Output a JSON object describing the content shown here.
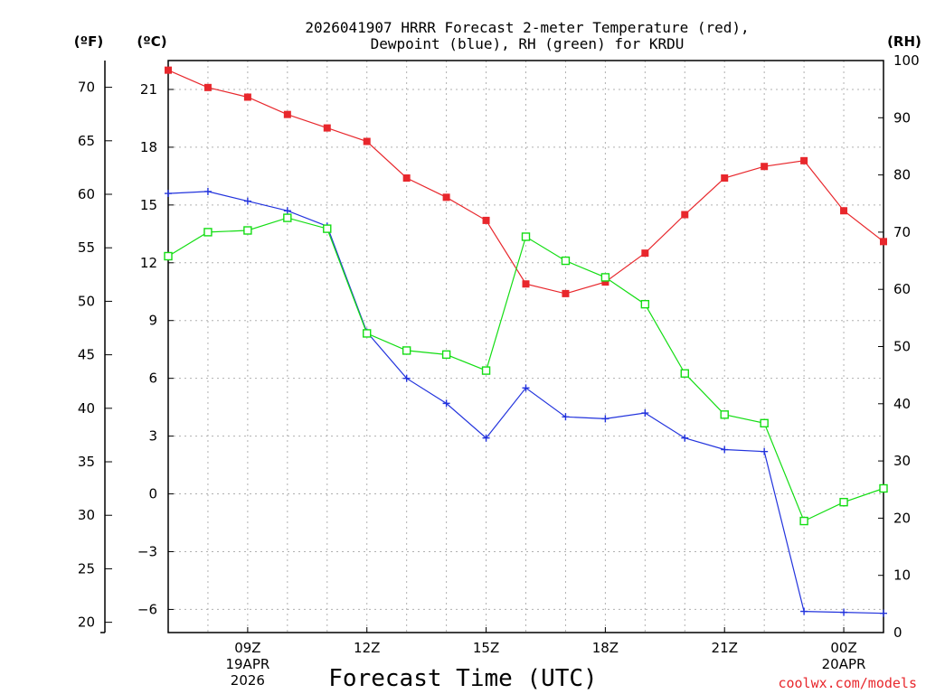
{
  "colors": {
    "temperature": "#e8272c",
    "dewpoint": "#2233dd",
    "rh": "#13dd13",
    "grid": "#b0b0b0",
    "credit": "#e8272c"
  },
  "chart_data": {
    "type": "line",
    "title_lines": [
      "2026041907 HRRR Forecast 2-meter Temperature (red),",
      "Dewpoint (blue), RH (green) for KRDU"
    ],
    "xlabel": "Forecast Time (UTC)",
    "credit": "coolwx.com/models",
    "x_hours": [
      7,
      8,
      9,
      10,
      11,
      12,
      13,
      14,
      15,
      16,
      17,
      18,
      19,
      20,
      21,
      22,
      23,
      24,
      25
    ],
    "xlim": [
      7,
      25
    ],
    "x_ticks": [
      {
        "hour": 9,
        "lines": [
          "09Z",
          "19APR",
          "2026"
        ]
      },
      {
        "hour": 12,
        "lines": [
          "12Z"
        ]
      },
      {
        "hour": 15,
        "lines": [
          "15Z"
        ]
      },
      {
        "hour": 18,
        "lines": [
          "18Z"
        ]
      },
      {
        "hour": 21,
        "lines": [
          "21Z"
        ]
      },
      {
        "hour": 24,
        "lines": [
          "00Z",
          "20APR"
        ]
      }
    ],
    "y_celsius": {
      "unit_label": "(ºC)",
      "range": [
        -7.2,
        22.5
      ],
      "ticks": [
        "21",
        "18",
        "15",
        "12",
        "9",
        "6",
        "3",
        "0",
        "−3",
        "−6"
      ],
      "tick_values": [
        21,
        18,
        15,
        12,
        9,
        6,
        3,
        0,
        -3,
        -6
      ]
    },
    "y_fahrenheit": {
      "unit_label": "(ºF)",
      "ticks": [
        "70",
        "65",
        "60",
        "55",
        "50",
        "45",
        "40",
        "35",
        "30",
        "25",
        "20"
      ],
      "tick_values": [
        70,
        65,
        60,
        55,
        50,
        45,
        40,
        35,
        30,
        25,
        20
      ]
    },
    "y_rh": {
      "unit_label": "(RH)",
      "range": [
        0,
        100
      ],
      "ticks": [
        "100",
        "90",
        "80",
        "70",
        "60",
        "50",
        "40",
        "30",
        "20",
        "10",
        "0"
      ],
      "tick_values": [
        100,
        90,
        80,
        70,
        60,
        50,
        40,
        30,
        20,
        10,
        0
      ]
    },
    "series": [
      {
        "name": "Temperature",
        "axis": "celsius",
        "marker": "filled-square",
        "values": [
          22.0,
          21.1,
          20.6,
          19.7,
          19.0,
          18.3,
          16.4,
          15.4,
          14.2,
          10.9,
          10.4,
          11.0,
          12.5,
          14.5,
          16.4,
          17.0,
          17.3,
          14.7,
          13.1
        ]
      },
      {
        "name": "Dewpoint",
        "axis": "celsius",
        "marker": "plus",
        "values": [
          15.6,
          15.7,
          15.2,
          14.7,
          13.9,
          8.4,
          6.0,
          4.7,
          2.9,
          5.5,
          4.0,
          3.9,
          4.2,
          2.9,
          2.3,
          2.2,
          -6.1,
          -6.15,
          -6.2
        ]
      },
      {
        "name": "RH",
        "axis": "rh",
        "marker": "open-square",
        "values": [
          65.8,
          70.0,
          70.3,
          72.5,
          70.6,
          52.3,
          49.3,
          48.6,
          45.8,
          69.2,
          65.0,
          62.1,
          57.4,
          45.3,
          38.1,
          36.6,
          19.5,
          22.8,
          25.2
        ]
      }
    ]
  }
}
